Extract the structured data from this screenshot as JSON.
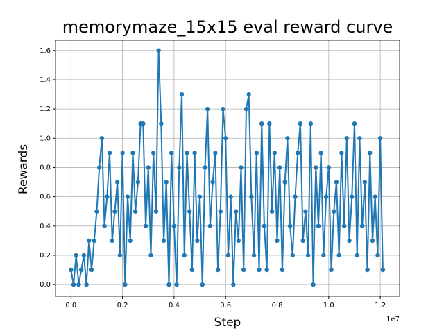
{
  "chart_data": {
    "type": "line",
    "title": "memorymaze_15x15 eval reward curve",
    "x_label": "Step",
    "y_label": "Rewards",
    "x_offset_label": "1e7",
    "color": "#1f77b4",
    "grid": true,
    "xlim": [
      -600000,
      12750000
    ],
    "ylim": [
      -0.08,
      1.67
    ],
    "xticks": [
      {
        "value": 0,
        "label": "0.0"
      },
      {
        "value": 2000000,
        "label": "0.2"
      },
      {
        "value": 4000000,
        "label": "0.4"
      },
      {
        "value": 6000000,
        "label": "0.6"
      },
      {
        "value": 8000000,
        "label": "0.8"
      },
      {
        "value": 10000000,
        "label": "1.0"
      },
      {
        "value": 12000000,
        "label": "1.2"
      }
    ],
    "yticks": [
      {
        "value": 0,
        "label": "0.0"
      },
      {
        "value": 0.2,
        "label": "0.2"
      },
      {
        "value": 0.4,
        "label": "0.4"
      },
      {
        "value": 0.6,
        "label": "0.6"
      },
      {
        "value": 0.8,
        "label": "0.8"
      },
      {
        "value": 1,
        "label": "1.0"
      },
      {
        "value": 1.2,
        "label": "1.2"
      },
      {
        "value": 1.4,
        "label": "1.4"
      },
      {
        "value": 1.6,
        "label": "1.6"
      }
    ],
    "x": [
      0,
      100000,
      200000,
      300000,
      400000,
      500000,
      600000,
      700000,
      800000,
      900000,
      1000000,
      1100000,
      1200000,
      1300000,
      1400000,
      1500000,
      1600000,
      1700000,
      1800000,
      1900000,
      2000000,
      2100000,
      2200000,
      2300000,
      2400000,
      2500000,
      2600000,
      2700000,
      2800000,
      2900000,
      3000000,
      3100000,
      3200000,
      3300000,
      3400000,
      3500000,
      3600000,
      3700000,
      3800000,
      3900000,
      4000000,
      4100000,
      4200000,
      4300000,
      4400000,
      4500000,
      4600000,
      4700000,
      4800000,
      4900000,
      5000000,
      5100000,
      5200000,
      5300000,
      5400000,
      5500000,
      5600000,
      5700000,
      5800000,
      5900000,
      6000000,
      6100000,
      6200000,
      6300000,
      6400000,
      6500000,
      6600000,
      6700000,
      6800000,
      6900000,
      7000000,
      7100000,
      7200000,
      7300000,
      7400000,
      7500000,
      7600000,
      7700000,
      7800000,
      7900000,
      8000000,
      8100000,
      8200000,
      8300000,
      8400000,
      8500000,
      8600000,
      8700000,
      8800000,
      8900000,
      9000000,
      9100000,
      9200000,
      9300000,
      9400000,
      9500000,
      9600000,
      9700000,
      9800000,
      9900000,
      10000000,
      10100000,
      10200000,
      10300000,
      10400000,
      10500000,
      10600000,
      10700000,
      10800000,
      10900000,
      11000000,
      11100000,
      11200000,
      11300000,
      11400000,
      11500000,
      11600000,
      11700000,
      11800000,
      11900000,
      12000000,
      12100000
    ],
    "values": [
      0.1,
      0,
      0.2,
      0,
      0.1,
      0.2,
      0,
      0.3,
      0.1,
      0.3,
      0.5,
      0.8,
      1.0,
      0.4,
      0.6,
      0.9,
      0.3,
      0.5,
      0.7,
      0.2,
      0.9,
      0,
      0.6,
      0.3,
      0.9,
      0.5,
      0.7,
      1.1,
      1.1,
      0.4,
      0.8,
      0.2,
      0.9,
      0.5,
      1.6,
      1.1,
      0.3,
      0.7,
      0,
      0.9,
      0.4,
      0,
      0.8,
      1.3,
      0.2,
      0.9,
      0.5,
      0.1,
      0.9,
      0.3,
      0.6,
      0,
      0.8,
      1.2,
      0.4,
      0.7,
      0.9,
      0.1,
      0.5,
      1.2,
      1.0,
      0.2,
      0.6,
      0,
      0.5,
      0.3,
      0.8,
      0.1,
      1.2,
      1.3,
      0.6,
      0.2,
      0.9,
      0.1,
      1.1,
      0.4,
      0.1,
      1.1,
      0.5,
      0.9,
      0.3,
      0.8,
      0.1,
      0.7,
      1.0,
      0.4,
      0.2,
      0.6,
      0.9,
      1.1,
      0.3,
      0.5,
      0.2,
      1.1,
      0,
      0.8,
      0.4,
      0.9,
      0.2,
      0.6,
      0.8,
      0.1,
      0.5,
      0.7,
      0.2,
      0.9,
      0.4,
      1.0,
      0.3,
      0.6,
      1.1,
      0.2,
      1.0,
      0.4,
      0.7,
      0.1,
      0.9,
      0.3,
      0.6,
      0.2,
      1.0,
      0.1
    ]
  }
}
